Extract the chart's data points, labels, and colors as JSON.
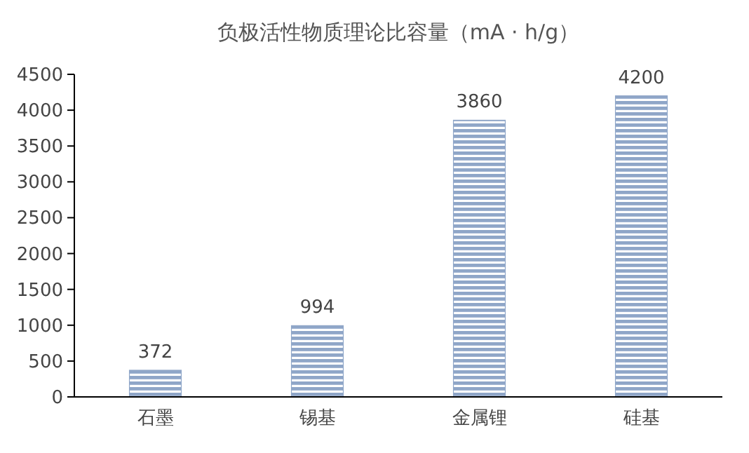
{
  "chart_data": {
    "type": "bar",
    "title": "负极活性物质理论比容量（mA · h/g）",
    "categories": [
      "石墨",
      "锡基",
      "金属锂",
      "硅基"
    ],
    "values": [
      372,
      994,
      3860,
      4200
    ],
    "color": "#8fa6c8",
    "ylim": [
      0,
      4500
    ],
    "yticks": [
      0,
      500,
      1000,
      1500,
      2000,
      2500,
      3000,
      3500,
      4000,
      4500
    ],
    "grid": false,
    "data_labels": true
  }
}
